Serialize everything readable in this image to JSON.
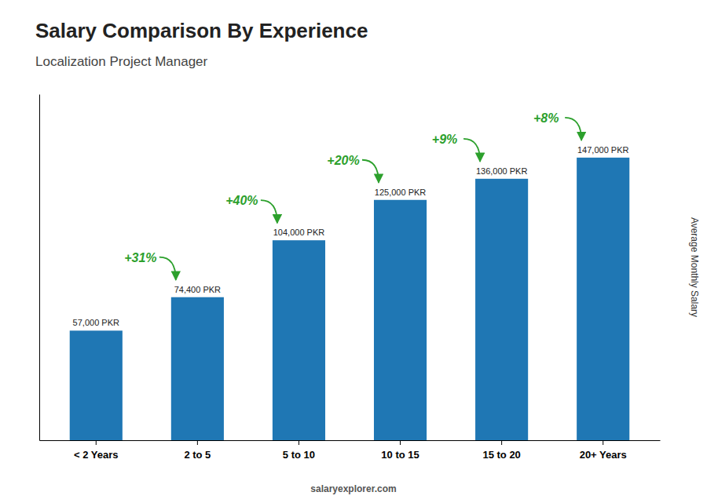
{
  "chart_data": {
    "type": "bar",
    "title": "Salary Comparison By Experience",
    "subtitle": "Localization Project Manager",
    "ylabel": "Average Monthly Salary",
    "categories": [
      "< 2 Years",
      "2 to 5",
      "5 to 10",
      "10 to 15",
      "15 to 20",
      "20+ Years"
    ],
    "values": [
      57000,
      74400,
      104000,
      125000,
      136000,
      147000
    ],
    "value_labels": [
      "57,000 PKR",
      "74,400 PKR",
      "104,000 PKR",
      "125,000 PKR",
      "136,000 PKR",
      "147,000 PKR"
    ],
    "data_labels": true,
    "annotations": [
      "+31%",
      "+40%",
      "+20%",
      "+9%",
      "+8%"
    ],
    "footer": "salaryexplorer.com",
    "ylim": [
      0,
      180000
    ],
    "tick_labels": "x"
  }
}
